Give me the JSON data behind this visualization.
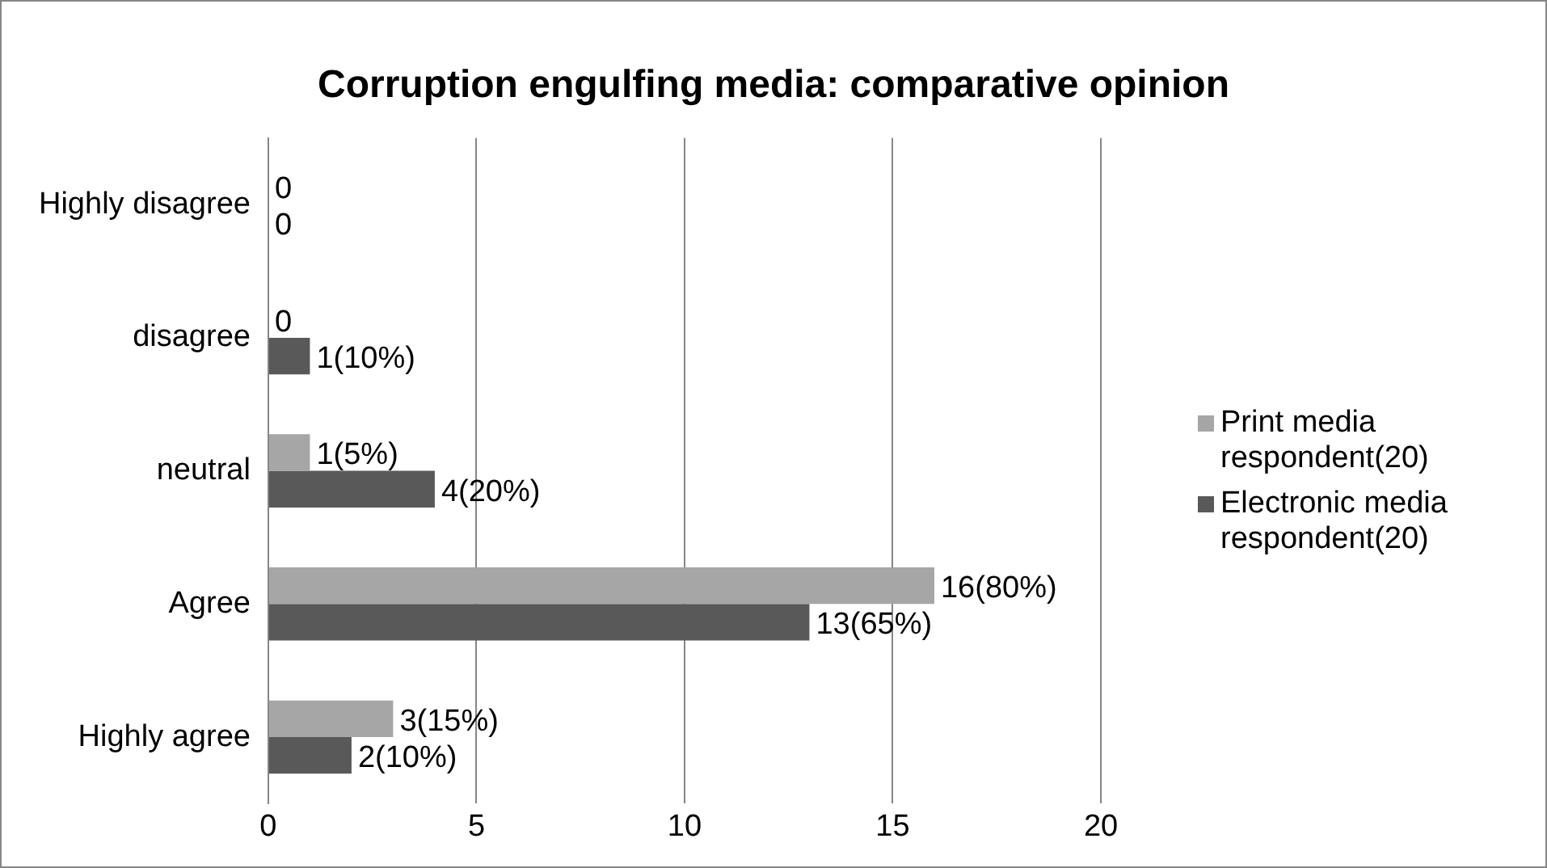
{
  "chart_data": {
    "type": "bar",
    "orientation": "horizontal",
    "title": "Corruption engulfing media: comparative opinion",
    "categories": [
      "Highly disagree",
      "disagree",
      "neutral",
      "Agree",
      "Highly agree"
    ],
    "series": [
      {
        "name": "Print media respondent(20)",
        "color": "#a6a6a6",
        "values": [
          0,
          0,
          1,
          16,
          3
        ],
        "value_labels": [
          "0",
          "0",
          "1(5%)",
          "16(80%)",
          "3(15%)"
        ]
      },
      {
        "name": "Electronic media respondent(20)",
        "color": "#595959",
        "values": [
          0,
          1,
          4,
          13,
          2
        ],
        "value_labels": [
          "0",
          "1(10%)",
          "4(20%)",
          "13(65%)",
          "2(10%)"
        ]
      }
    ],
    "xlim": [
      0,
      20
    ],
    "xticks": [
      0,
      5,
      10,
      15,
      20
    ],
    "grid": "x",
    "legend": "right"
  }
}
